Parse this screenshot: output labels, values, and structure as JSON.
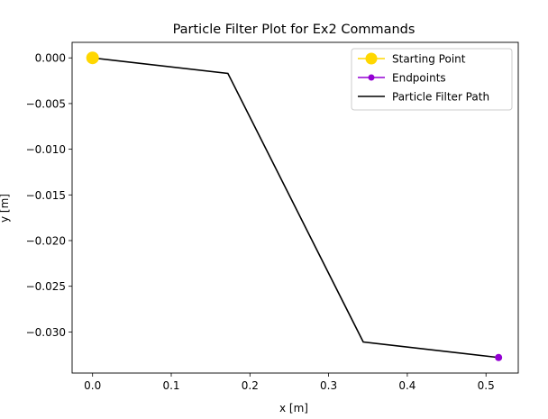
{
  "chart_data": {
    "type": "line",
    "title": "Particle Filter Plot for Ex2 Commands",
    "xlabel": "x [m]",
    "ylabel": "y [m]",
    "xlim": [
      -0.026,
      0.541
    ],
    "ylim": [
      -0.0345,
      0.0017
    ],
    "grid": false,
    "legend_position": "top-right",
    "xticks": [
      0.0,
      0.1,
      0.2,
      0.3,
      0.4,
      0.5
    ],
    "xtick_labels": [
      "0.0",
      "0.1",
      "0.2",
      "0.3",
      "0.4",
      "0.5"
    ],
    "yticks": [
      0.0,
      -0.005,
      -0.01,
      -0.015,
      -0.02,
      -0.025,
      -0.03
    ],
    "ytick_labels": [
      "0.000",
      "−0.005",
      "−0.010",
      "−0.015",
      "−0.020",
      "−0.025",
      "−0.030"
    ],
    "series": [
      {
        "name": "Starting Point",
        "color": "#ffd700",
        "marker": "circle-large",
        "points": [
          [
            0.0,
            0.0
          ]
        ]
      },
      {
        "name": "Endpoints",
        "color": "#9400d3",
        "marker": "circle",
        "points": [
          [
            0.516,
            -0.0328
          ]
        ]
      },
      {
        "name": "Particle Filter Path",
        "color": "#000000",
        "marker": "none",
        "points": [
          [
            0.0,
            0.0
          ],
          [
            0.172,
            -0.0017
          ],
          [
            0.344,
            -0.0311
          ],
          [
            0.516,
            -0.0328
          ]
        ]
      }
    ]
  }
}
